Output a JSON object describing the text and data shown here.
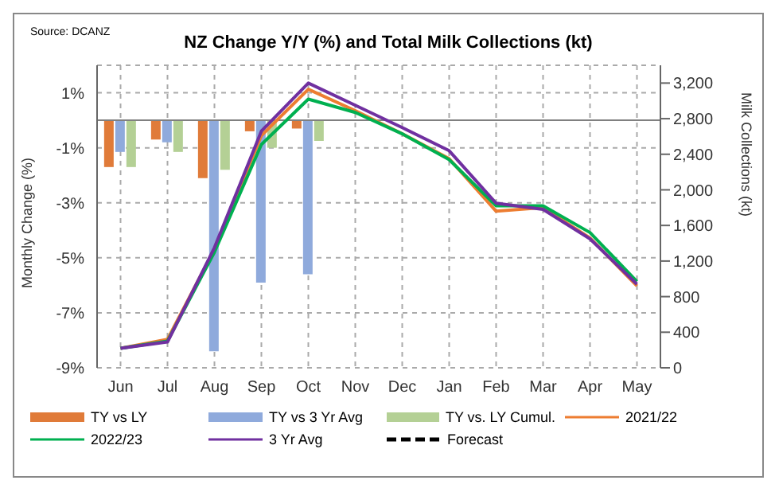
{
  "chart_data": {
    "type": "bar",
    "title": "NZ Change Y/Y (%) and Total Milk Collections (kt)",
    "ylabel": "Monthly Change (%)",
    "y2label": "Milk Collections (kt)",
    "annotations": [
      "Source: DCANZ"
    ],
    "categories": [
      "Jun",
      "Jul",
      "Aug",
      "Sep",
      "Oct",
      "Nov",
      "Dec",
      "Jan",
      "Feb",
      "Mar",
      "Apr",
      "May"
    ],
    "series": [
      {
        "name": "TY vs LY",
        "color": "#e07b39",
        "values": [
          -1.7,
          -0.7,
          -2.1,
          -0.4,
          -0.3,
          null,
          null,
          null,
          null,
          null,
          null,
          null
        ]
      },
      {
        "name": "TY vs 3 Yr Avg",
        "color": "#8faadc",
        "values": [
          -1.15,
          -0.8,
          -8.4,
          -5.9,
          -5.6,
          null,
          null,
          null,
          null,
          null,
          null,
          null
        ]
      },
      {
        "name": "TY vs. LY Cumul.",
        "color": "#b4d095",
        "values": [
          -1.7,
          -1.15,
          -1.8,
          -1.0,
          -0.75,
          null,
          null,
          null,
          null,
          null,
          null,
          null
        ]
      },
      {
        "name": "2021/22",
        "type": "line",
        "axis": "y2",
        "color": "#ed7d31",
        "values": [
          220,
          320,
          1330,
          2610,
          3130,
          2890,
          2630,
          2350,
          1760,
          1800,
          1460,
          920
        ]
      },
      {
        "name": "2022/23",
        "type": "line",
        "axis": "y2",
        "color": "#00b050",
        "values": [
          220,
          300,
          1300,
          2510,
          3020,
          2870,
          2630,
          2340,
          1820,
          1820,
          1520,
          970
        ]
      },
      {
        "name": "3 Yr Avg",
        "type": "line",
        "axis": "y2",
        "color": "#7030a0",
        "values": [
          220,
          290,
          1350,
          2660,
          3200,
          2950,
          2700,
          2440,
          1850,
          1780,
          1450,
          940
        ]
      },
      {
        "name": "Forecast",
        "type": "line",
        "axis": "y2",
        "color": "#000000",
        "line_style": "dashed",
        "values": [
          null,
          null,
          null,
          null,
          null,
          null,
          null,
          null,
          null,
          null,
          null,
          null
        ]
      }
    ],
    "ylim": [
      -9,
      2
    ],
    "yticks": [
      {
        "value": 1,
        "label": "1%"
      },
      {
        "value": -1,
        "label": "-1%"
      },
      {
        "value": -3,
        "label": "-3%"
      },
      {
        "value": -5,
        "label": "-5%"
      },
      {
        "value": -7,
        "label": "-7%"
      },
      {
        "value": -9,
        "label": "-9%"
      }
    ],
    "y2lim": [
      0,
      3400
    ],
    "y2ticks": [
      0,
      400,
      800,
      {
        "value": 1200,
        "label": "1,200"
      },
      {
        "value": 1600,
        "label": "1,600"
      },
      {
        "value": 2000,
        "label": "2,000"
      },
      {
        "value": 2400,
        "label": "2,400"
      },
      {
        "value": 2800,
        "label": "2,800"
      },
      {
        "value": 3200,
        "label": "3,200"
      }
    ],
    "ref_lines": [
      {
        "axis": "y",
        "value": 0,
        "color": "#808080"
      }
    ],
    "grid": true,
    "legend": "bottom",
    "line_style": "solid"
  }
}
